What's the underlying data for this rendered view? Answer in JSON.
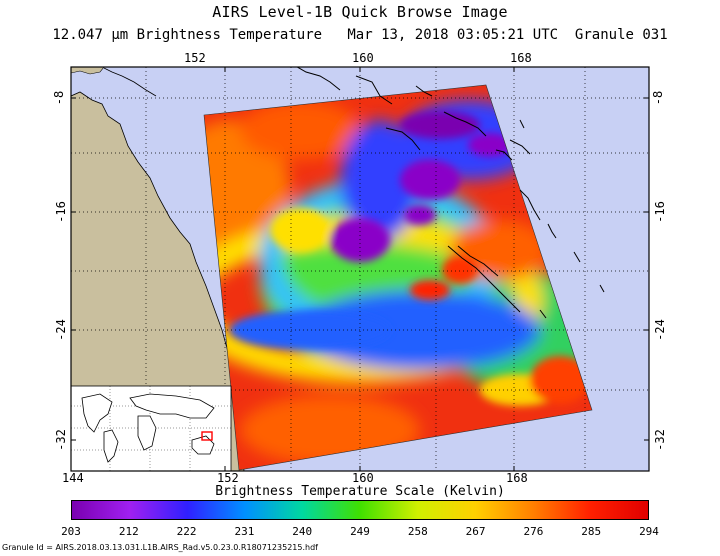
{
  "header": {
    "title": "AIRS Level-1B Quick Browse Image",
    "subtitle": "12.047 µm Brightness Temperature   Mar 13, 2018 03:05:21 UTC  Granule 031"
  },
  "map": {
    "lon_ticks_top": [
      "152",
      "160",
      "168"
    ],
    "lon_ticks_bottom": [
      "144",
      "152",
      "160",
      "168"
    ],
    "lat_ticks_left": [
      "-8",
      "-16",
      "-24",
      "-32"
    ],
    "lat_ticks_right": [
      "-8",
      "-16",
      "-24",
      "-32"
    ],
    "ocean_color": "#c8d0f4",
    "land_color": "#c9bf9e",
    "coastline_color": "#000000",
    "inset_marker_color": "#ff0000"
  },
  "colorbar": {
    "title": "Brightness Temperature Scale (Kelvin)",
    "labels": [
      "203",
      "212",
      "222",
      "231",
      "240",
      "249",
      "258",
      "267",
      "276",
      "285",
      "294"
    ],
    "colors": [
      "#7a00b0",
      "#a020f0",
      "#3020ff",
      "#0090ff",
      "#00d8a0",
      "#40e000",
      "#d0f000",
      "#ffd000",
      "#ff8000",
      "#ff2000",
      "#e00000"
    ]
  },
  "footer": {
    "granule_id": "Granule Id = AIRS.2018.03.13.031.L1B.AIRS_Rad.v5.0.23.0.R18071235215.hdf"
  }
}
